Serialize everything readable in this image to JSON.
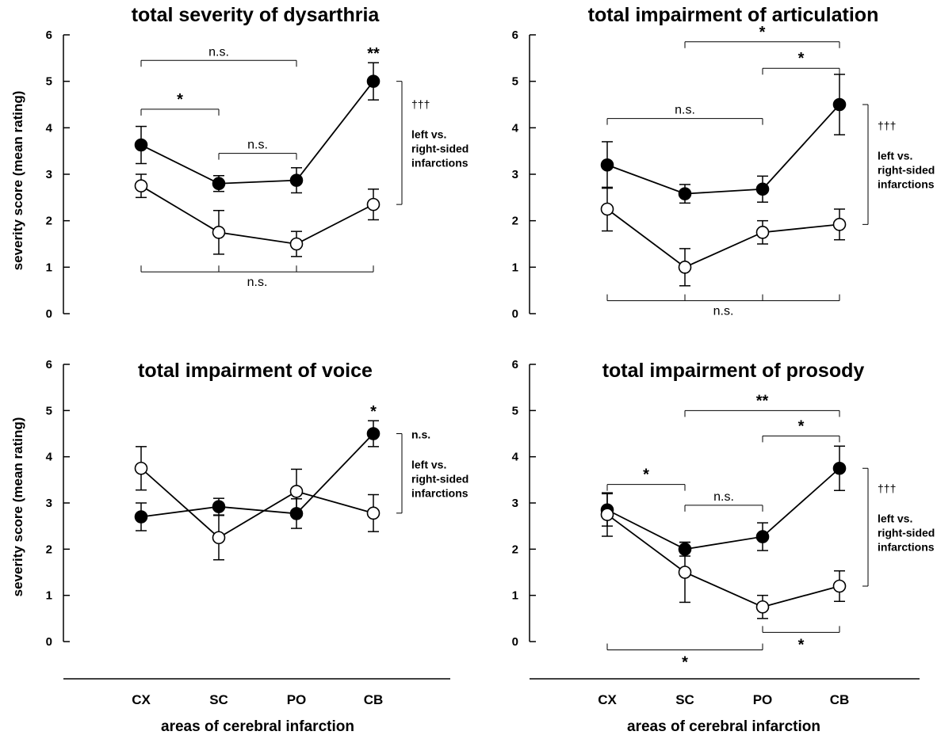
{
  "figure": {
    "y_axis_label": "severity score (mean rating)",
    "x_axis_label": "areas of cerebral infarction"
  },
  "chart_data": [
    {
      "type": "line",
      "title": "total severity of dysarthria",
      "categories": [
        "CX",
        "SC",
        "PO",
        "CB"
      ],
      "ylim": [
        0,
        6
      ],
      "yticks": [
        "0",
        "1",
        "2",
        "3",
        "4",
        "5",
        "6"
      ],
      "series": [
        {
          "marker": "filled",
          "values": [
            3.63,
            2.8,
            2.87,
            5.0
          ],
          "errors": [
            0.4,
            0.17,
            0.27,
            0.4
          ]
        },
        {
          "marker": "open",
          "values": [
            2.75,
            1.75,
            1.5,
            2.35
          ],
          "errors": [
            0.25,
            0.47,
            0.27,
            0.33
          ]
        }
      ],
      "category_markers": [
        null,
        null,
        null,
        "**"
      ],
      "comparisons": [
        {
          "from": 0,
          "to": 2,
          "y": 5.45,
          "label": "n.s.",
          "side": "above"
        },
        {
          "from": 0,
          "to": 1,
          "y": 4.4,
          "label": "*",
          "side": "above"
        },
        {
          "from": 1,
          "to": 2,
          "y": 3.45,
          "label": "n.s.",
          "side": "above"
        },
        {
          "from": 0,
          "to": 3,
          "y": 0.9,
          "label": "n.s.",
          "side": "below",
          "ticks": [
            0,
            1,
            2,
            3
          ]
        }
      ],
      "side_bracket": {
        "top": 5.0,
        "bottom": 2.35,
        "symbol": "†††",
        "text": [
          "left vs.",
          "right-sided",
          "infarctions"
        ]
      }
    },
    {
      "type": "line",
      "title": "total impairment of articulation",
      "categories": [
        "CX",
        "SC",
        "PO",
        "CB"
      ],
      "ylim": [
        0,
        6
      ],
      "yticks": [
        "0",
        "1",
        "2",
        "3",
        "4",
        "5",
        "6"
      ],
      "series": [
        {
          "marker": "filled",
          "values": [
            3.2,
            2.58,
            2.68,
            4.5
          ],
          "errors": [
            0.5,
            0.2,
            0.28,
            0.65
          ]
        },
        {
          "marker": "open",
          "values": [
            2.25,
            1.0,
            1.75,
            1.92
          ],
          "errors": [
            0.47,
            0.4,
            0.25,
            0.33
          ]
        }
      ],
      "category_markers": [
        null,
        null,
        null,
        null
      ],
      "comparisons": [
        {
          "from": 1,
          "to": 3,
          "y": 5.85,
          "label": "*",
          "side": "above"
        },
        {
          "from": 2,
          "to": 3,
          "y": 5.28,
          "label": "*",
          "side": "above"
        },
        {
          "from": 0,
          "to": 2,
          "y": 4.2,
          "label": "n.s.",
          "side": "above"
        },
        {
          "from": 0,
          "to": 3,
          "y": 0.28,
          "label": "n.s.",
          "side": "below",
          "ticks": [
            0,
            1,
            2,
            3
          ]
        }
      ],
      "side_bracket": {
        "top": 4.5,
        "bottom": 1.92,
        "symbol": "†††",
        "text": [
          "left vs.",
          "right-sided",
          "infarctions"
        ]
      }
    },
    {
      "type": "line",
      "title": "total impairment of voice",
      "categories": [
        "CX",
        "SC",
        "PO",
        "CB"
      ],
      "ylim": [
        0,
        6
      ],
      "yticks": [
        "0",
        "1",
        "2",
        "3",
        "4",
        "5",
        "6"
      ],
      "series": [
        {
          "marker": "filled",
          "values": [
            2.7,
            2.92,
            2.77,
            4.5
          ],
          "errors": [
            0.3,
            0.18,
            0.32,
            0.28
          ]
        },
        {
          "marker": "open",
          "values": [
            3.75,
            2.25,
            3.25,
            2.78
          ],
          "errors": [
            0.47,
            0.48,
            0.48,
            0.4
          ]
        }
      ],
      "category_markers": [
        null,
        null,
        null,
        "*"
      ],
      "comparisons": [],
      "side_bracket": {
        "top": 4.5,
        "bottom": 2.78,
        "symbol": "n.s.",
        "text": [
          "left vs.",
          "right-sided",
          "infarctions"
        ]
      }
    },
    {
      "type": "line",
      "title": "total impairment of prosody",
      "categories": [
        "CX",
        "SC",
        "PO",
        "CB"
      ],
      "ylim": [
        0,
        6
      ],
      "yticks": [
        "0",
        "1",
        "2",
        "3",
        "4",
        "5",
        "6"
      ],
      "series": [
        {
          "marker": "filled",
          "values": [
            2.85,
            2.0,
            2.27,
            3.75
          ],
          "errors": [
            0.35,
            0.15,
            0.3,
            0.48
          ]
        },
        {
          "marker": "open",
          "values": [
            2.75,
            1.5,
            0.75,
            1.2
          ],
          "errors": [
            0.47,
            0.65,
            0.25,
            0.33
          ]
        }
      ],
      "category_markers": [
        null,
        null,
        null,
        null
      ],
      "comparisons": [
        {
          "from": 1,
          "to": 3,
          "y": 5.0,
          "label": "**",
          "side": "above"
        },
        {
          "from": 2,
          "to": 3,
          "y": 4.45,
          "label": "*",
          "side": "above"
        },
        {
          "from": 0,
          "to": 1,
          "y": 3.4,
          "label": "*",
          "side": "above"
        },
        {
          "from": 1,
          "to": 2,
          "y": 2.95,
          "label": "n.s.",
          "side": "above"
        },
        {
          "from": 2,
          "to": 3,
          "y": 0.2,
          "label": "*",
          "side": "below"
        },
        {
          "from": 0,
          "to": 2,
          "y": -0.18,
          "label": "*",
          "side": "below"
        }
      ],
      "side_bracket": {
        "top": 3.75,
        "bottom": 1.2,
        "symbol": "†††",
        "text": [
          "left vs.",
          "right-sided",
          "infarctions"
        ]
      }
    }
  ]
}
